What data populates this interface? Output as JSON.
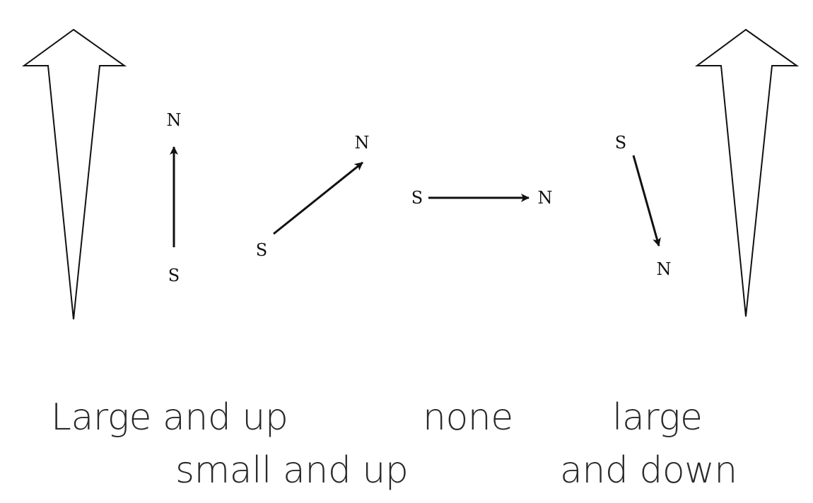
{
  "field_arrow_color": "#000000",
  "needles": [
    {
      "id": "needle-1",
      "north_label": "N",
      "south_label": "S"
    },
    {
      "id": "needle-2",
      "north_label": "N",
      "south_label": "S"
    },
    {
      "id": "needle-3",
      "north_label": "N",
      "south_label": "S"
    },
    {
      "id": "needle-4",
      "north_label": "N",
      "south_label": "S"
    }
  ],
  "captions": {
    "large_and_up": "Large and up",
    "small_and_up": "small and up",
    "none": "none",
    "large_line1": "large",
    "large_line2": "and down"
  }
}
